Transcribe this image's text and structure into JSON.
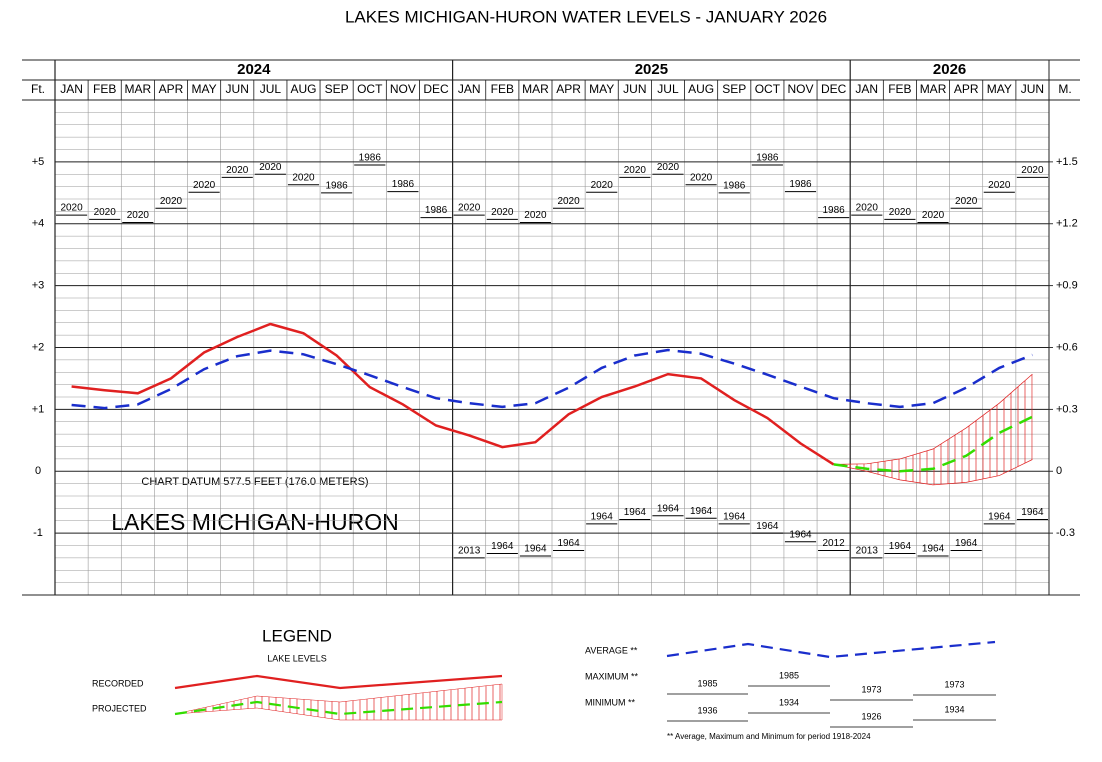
{
  "chart_data": {
    "type": "line",
    "title": "LAKES MICHIGAN-HURON WATER LEVELS - JANUARY 2026",
    "years": [
      "2024",
      "2025",
      "2026"
    ],
    "categories": [
      "JAN",
      "FEB",
      "MAR",
      "APR",
      "MAY",
      "JUN",
      "JUL",
      "AUG",
      "SEP",
      "OCT",
      "NOV",
      "DEC",
      "JAN",
      "FEB",
      "MAR",
      "APR",
      "MAY",
      "JUN",
      "JUL",
      "AUG",
      "SEP",
      "OCT",
      "NOV",
      "DEC",
      "JAN",
      "FEB",
      "MAR",
      "APR",
      "MAY",
      "JUN"
    ],
    "y_axis_label": "Ft.",
    "y2_axis_label": "M.",
    "ylim": [
      -2,
      6
    ],
    "yticks": [
      -1,
      0,
      {
        "value": 1,
        "label": "+1"
      },
      {
        "value": 2,
        "label": "+2"
      },
      {
        "value": 3,
        "label": "+3"
      },
      {
        "value": 4,
        "label": "+4"
      },
      {
        "value": 5,
        "label": "+5"
      }
    ],
    "y2lim": [
      -0.6,
      1.8
    ],
    "y2ticks": [
      -0.3,
      0,
      {
        "value": 0.3,
        "label": "+0.3"
      },
      {
        "value": 0.6,
        "label": "+0.6"
      },
      {
        "value": 0.9,
        "label": "+0.9"
      },
      {
        "value": 1.2,
        "label": "+1.2"
      },
      {
        "value": 1.5,
        "label": "+1.5"
      }
    ],
    "grid": true,
    "annotations": [
      "CHART DATUM  577.5 FEET (176.0 METERS)",
      "LAKES MICHIGAN-HURON"
    ],
    "series": [
      {
        "name": "RECORDED",
        "color": "#e02020",
        "style": "solid",
        "values": [
          1.37,
          1.31,
          1.26,
          1.5,
          1.92,
          2.17,
          2.38,
          2.23,
          1.87,
          1.36,
          1.08,
          0.74,
          0.58,
          0.39,
          0.47,
          0.92,
          1.2,
          1.37,
          1.57,
          1.5,
          1.15,
          0.86,
          0.45,
          0.11,
          null,
          null,
          null,
          null,
          null,
          null
        ]
      },
      {
        "name": "PROJECTED",
        "color": "#33dd00",
        "style": "dashed",
        "values": [
          null,
          null,
          null,
          null,
          null,
          null,
          null,
          null,
          null,
          null,
          null,
          null,
          null,
          null,
          null,
          null,
          null,
          null,
          null,
          null,
          null,
          null,
          null,
          0.11,
          0.04,
          0.0,
          0.04,
          0.25,
          0.62,
          0.88
        ]
      },
      {
        "name": "AVERAGE **",
        "color": "#1a2ecc",
        "style": "dashed",
        "values": [
          1.07,
          1.02,
          1.08,
          1.33,
          1.65,
          1.86,
          1.95,
          1.89,
          1.73,
          1.55,
          1.36,
          1.18,
          1.1,
          1.04,
          1.1,
          1.35,
          1.67,
          1.87,
          1.96,
          1.9,
          1.74,
          1.56,
          1.37,
          1.18,
          1.1,
          1.04,
          1.1,
          1.35,
          1.67,
          1.88
        ]
      }
    ],
    "projected_range": {
      "color": "#e02020",
      "upper": [
        null,
        null,
        null,
        null,
        null,
        null,
        null,
        null,
        null,
        null,
        null,
        null,
        null,
        null,
        null,
        null,
        null,
        null,
        null,
        null,
        null,
        null,
        null,
        0.11,
        0.12,
        0.2,
        0.36,
        0.7,
        1.1,
        1.57
      ],
      "lower": [
        null,
        null,
        null,
        null,
        null,
        null,
        null,
        null,
        null,
        null,
        null,
        null,
        null,
        null,
        null,
        null,
        null,
        null,
        null,
        null,
        null,
        null,
        null,
        0.11,
        0.0,
        -0.14,
        -0.22,
        -0.18,
        -0.07,
        0.19
      ]
    },
    "record_high": {
      "name": "MAXIMUM **",
      "years": [
        "2020",
        "2020",
        "2020",
        "2020",
        "2020",
        "2020",
        "2020",
        "2020",
        "1986",
        "1986",
        "1986",
        "1986",
        "2020",
        "2020",
        "2020",
        "2020",
        "2020",
        "2020",
        "2020",
        "2020",
        "1986",
        "1986",
        "1986",
        "1986",
        "2020",
        "2020",
        "2020",
        "2020",
        "2020",
        "2020"
      ],
      "values": [
        4.14,
        4.07,
        4.02,
        4.25,
        4.51,
        4.75,
        4.8,
        4.63,
        4.5,
        4.95,
        4.52,
        4.1,
        4.14,
        4.07,
        4.02,
        4.25,
        4.51,
        4.75,
        4.8,
        4.63,
        4.5,
        4.95,
        4.52,
        4.1,
        4.14,
        4.07,
        4.02,
        4.25,
        4.51,
        4.75
      ]
    },
    "record_low": {
      "name": "MINIMUM **",
      "years": [
        null,
        null,
        null,
        null,
        null,
        null,
        null,
        null,
        null,
        null,
        null,
        null,
        "2013",
        "1964",
        "1964",
        "1964",
        "1964",
        "1964",
        "1964",
        "1964",
        "1964",
        "1964",
        "1964",
        "2012",
        "2013",
        "1964",
        "1964",
        "1964",
        "1964",
        "1964"
      ],
      "values": [
        null,
        null,
        null,
        null,
        null,
        null,
        null,
        null,
        null,
        null,
        null,
        null,
        -1.4,
        -1.33,
        -1.37,
        -1.28,
        -0.85,
        -0.78,
        -0.72,
        -0.76,
        -0.85,
        -1.0,
        -1.14,
        -1.28,
        -1.4,
        -1.33,
        -1.37,
        -1.28,
        -0.85,
        -0.78
      ]
    },
    "legend": {
      "title": "LEGEND",
      "subtitle": "LAKE LEVELS",
      "maximum_years": [
        "1985",
        "1985",
        "1973",
        "1973"
      ],
      "minimum_years": [
        "1936",
        "1934",
        "1926",
        "1934"
      ],
      "footnote": "** Average, Maximum and Minimum for period 1918-2024"
    }
  }
}
